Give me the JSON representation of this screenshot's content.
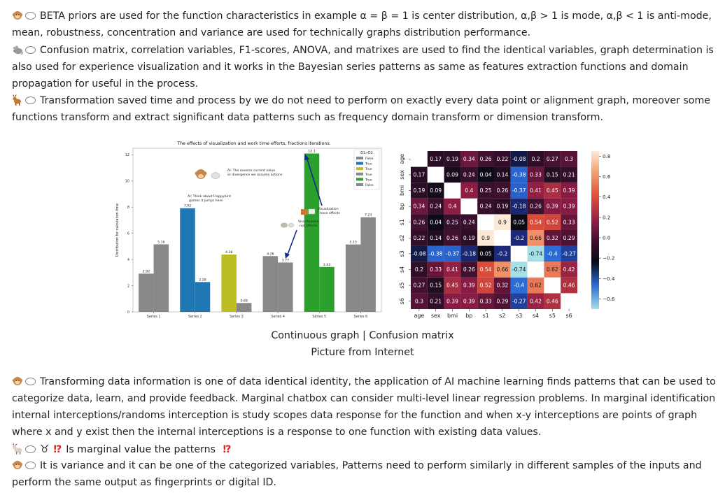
{
  "paragraphs": {
    "p1": "BETA priors are used for the function characteristics in example α = β = 1 is center distribution, α,β > 1 is mode, α,β < 1 is anti-mode, mean, robustness, concentration and variance are used for technically graphs distribution performance.",
    "p2": "Confusion matrix, correlation variables, F1-scores, ANOVA, and matrixes are used to find the identical variables, graph determination is also used for experience visualization and it works in the Bayesian series patterns as same as features extraction functions and domain propagation for useful in the process.",
    "p3": "Transformation saved time and process by we do not need to perform on exactly every data point or alignment graph, moreover some functions transform and extract significant data patterns such as frequency domain transform or dimension transform.",
    "p4": "Transforming data information is one of data identical identity, the application of AI machine learning finds patterns that can be used to categorize data, learn, and provide feedback. Marginal chatbox can consider multi-level linear regression problems. In marginal identification internal interceptions/randoms interception is study scopes data response for the function and when x-y interceptions are points of graph where x and y exist then the internal interceptions is a response to one function with existing data values.",
    "p5_symbol": "♉",
    "p5_mark": "⁉",
    "p5": "Is marginal value the patterns",
    "p6": "It is variance and it can be one of the categorized variables, Patterns need to perform similarly in different samples of the inputs and perform the same output as fingerprints or digital ID."
  },
  "caption": {
    "line1": "Continuous graph | Confusion matrix",
    "line2": "Picture from Internet"
  },
  "icons": {
    "monkey": "monkey-icon",
    "mouse": "mouse-icon",
    "deer": "deer-icon",
    "goat": "goat-icon",
    "bubble": "speech-bubble-icon"
  },
  "chart_data": [
    {
      "type": "bar",
      "title": "The effects of visualization and work time efforts, fractions iterations.",
      "ylabel": "Distribution for calculation time",
      "categories": [
        "Series 1",
        "Series 2",
        "Series 3",
        "Series 4",
        "Series 5",
        "Series 6"
      ],
      "ylim": [
        0,
        12.5
      ],
      "yticks": [
        "0",
        "2",
        "4",
        "6",
        "8",
        "10",
        "12"
      ],
      "bars": [
        {
          "values": [
            2.92,
            7.92,
            4.38,
            4.26,
            12.1,
            5.15
          ],
          "labels": [
            "2.92",
            "7.92",
            "4.38",
            "4.26",
            "12.1",
            "5.15"
          ]
        },
        {
          "values": [
            5.16,
            2.28,
            0.68,
            3.77,
            3.43,
            7.23
          ],
          "labels": [
            "5.16",
            "2.28",
            "0.68",
            "3.77",
            "3.43",
            "7.23"
          ]
        }
      ],
      "bar_colors": [
        "#888888",
        "#1f77b4",
        "#bcbd22",
        "#888888",
        "#2ca02c",
        "#888888"
      ],
      "legend": {
        "title": "D1>D2",
        "entries": [
          {
            "label": "False",
            "color": "#888888"
          },
          {
            "label": "True",
            "color": "#1f77b4"
          },
          {
            "label": "True",
            "color": "#bcbd22"
          },
          {
            "label": "True",
            "color": "#888888"
          },
          {
            "label": "True",
            "color": "#2ca02c"
          },
          {
            "label": "False",
            "color": "#888888"
          }
        ]
      },
      "annotations": [
        "AI: The reverse current value or divergence we assume actions",
        "AI: Think about Flappybird games it jumps here",
        "Visualization have effects",
        "Visualization not effects."
      ]
    },
    {
      "type": "heatmap",
      "labels": [
        "age",
        "sex",
        "bmi",
        "bp",
        "s1",
        "s2",
        "s3",
        "s4",
        "s5",
        "s6"
      ],
      "matrix": [
        [
          null,
          0.17,
          0.19,
          0.34,
          0.26,
          0.22,
          -0.08,
          0.2,
          0.27,
          0.3
        ],
        [
          0.17,
          null,
          0.09,
          0.24,
          0.04,
          0.14,
          -0.38,
          0.33,
          0.15,
          0.21
        ],
        [
          0.19,
          0.09,
          null,
          0.4,
          0.25,
          0.26,
          -0.37,
          0.41,
          0.45,
          0.39
        ],
        [
          0.34,
          0.24,
          0.4,
          null,
          0.24,
          0.19,
          -0.18,
          0.26,
          0.39,
          0.39
        ],
        [
          0.26,
          0.04,
          0.25,
          0.24,
          null,
          0.9,
          0.05,
          0.54,
          0.52,
          0.33
        ],
        [
          0.22,
          0.14,
          0.26,
          0.19,
          0.9,
          null,
          -0.2,
          0.66,
          0.32,
          0.29
        ],
        [
          -0.08,
          -0.38,
          -0.37,
          -0.18,
          0.05,
          -0.2,
          null,
          -0.74,
          -0.4,
          -0.27
        ],
        [
          0.2,
          0.33,
          0.41,
          0.26,
          0.54,
          0.66,
          -0.74,
          null,
          0.62,
          0.42
        ],
        [
          0.27,
          0.15,
          0.45,
          0.39,
          0.52,
          0.32,
          -0.4,
          0.62,
          null,
          0.46
        ],
        [
          0.3,
          0.21,
          0.39,
          0.39,
          0.33,
          0.29,
          -0.27,
          0.42,
          0.46,
          null
        ]
      ],
      "colorbar_ticks": [
        "0.8",
        "0.6",
        "0.4",
        "0.2",
        "0.0",
        "−0.2",
        "−0.4",
        "−0.6"
      ],
      "colorbar_range": [
        -0.7,
        0.85
      ]
    }
  ]
}
